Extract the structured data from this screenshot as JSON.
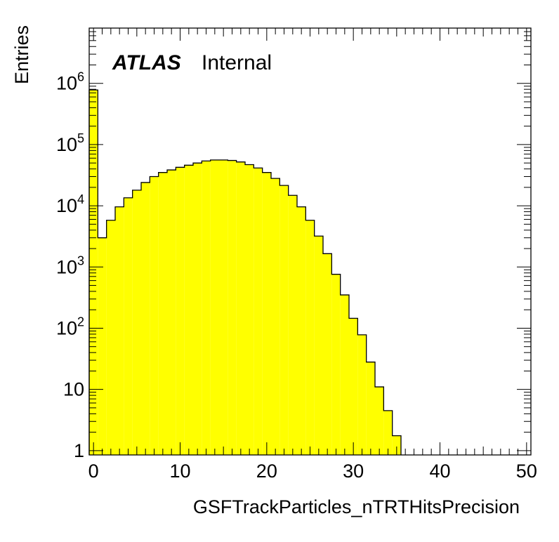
{
  "chart_data": {
    "type": "bar",
    "xlabel": "GSFTrackParticles_nTRTHitsPrecision",
    "ylabel": "Entries",
    "xlim": [
      -0.5,
      50.5
    ],
    "ylim": [
      0.85,
      8000000
    ],
    "y_scale": "log",
    "grid": false,
    "x_ticks": [
      0,
      10,
      20,
      30,
      40,
      50
    ],
    "y_ticks": [
      {
        "value": 1,
        "base": "1",
        "exp": ""
      },
      {
        "value": 10,
        "base": "10",
        "exp": ""
      },
      {
        "value": 100,
        "base": "10",
        "exp": "2"
      },
      {
        "value": 1000,
        "base": "10",
        "exp": "3"
      },
      {
        "value": 10000,
        "base": "10",
        "exp": "4"
      },
      {
        "value": 100000,
        "base": "10",
        "exp": "5"
      },
      {
        "value": 1000000,
        "base": "10",
        "exp": "6"
      }
    ],
    "fill_color": "#ffff00",
    "line_color": "#000000",
    "bin_edges_start": -0.5,
    "bin_width": 1,
    "values": [
      780000,
      3000,
      5800,
      9600,
      13500,
      18000,
      24000,
      30000,
      35000,
      38500,
      42500,
      46000,
      50000,
      54000,
      56000,
      56000,
      55000,
      52000,
      47000,
      41500,
      35000,
      28000,
      21500,
      14800,
      9600,
      5800,
      3200,
      1650,
      760,
      350,
      145,
      78,
      28,
      11,
      4.5,
      1.75
    ]
  },
  "label": {
    "experiment": "ATLAS",
    "status": "Internal"
  }
}
